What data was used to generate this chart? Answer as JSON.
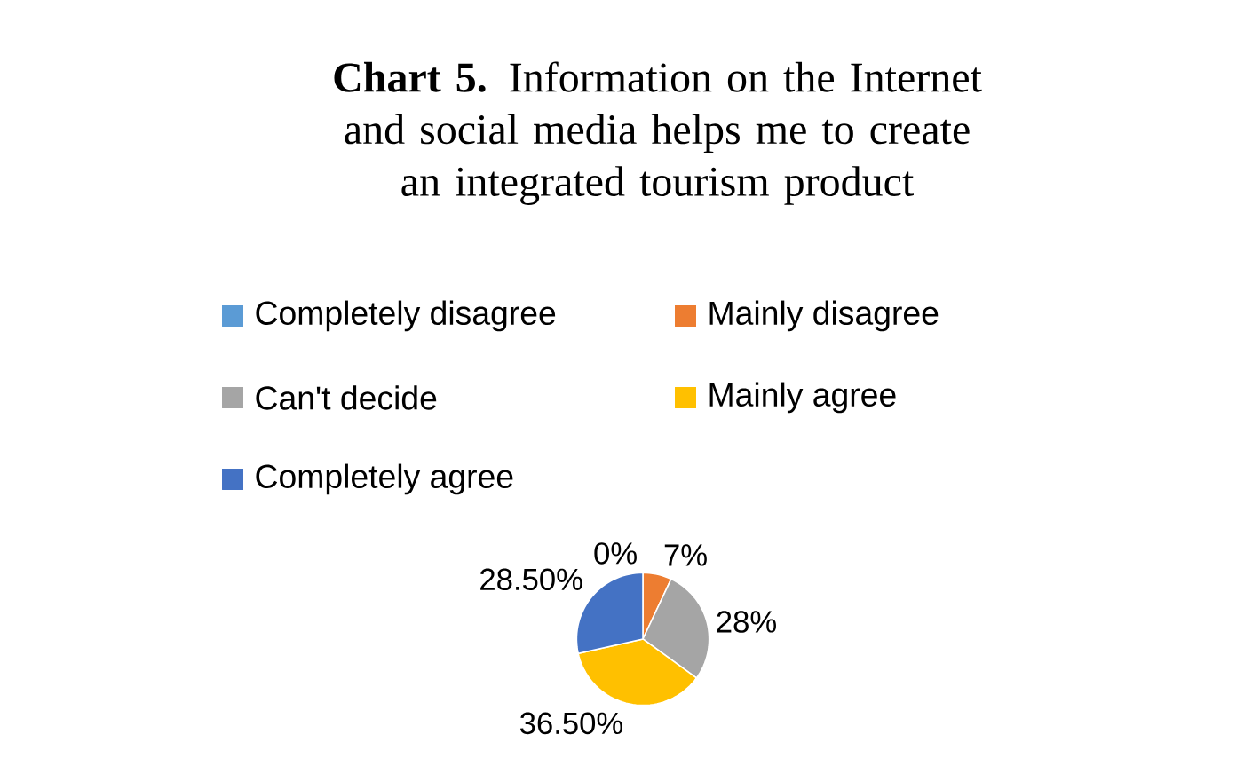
{
  "chart_data": {
    "type": "pie",
    "title": "**Chart 5.** Information on the Internet and social media helps me to create an integrated tourism product",
    "categories": [
      "Completely disagree",
      "Mainly disagree",
      "Can't decide",
      "Mainly agree",
      "Completely agree"
    ],
    "values": [
      0,
      7,
      28,
      36.5,
      28.5
    ],
    "value_labels": [
      "0%",
      "7%",
      "28%",
      "36.50%",
      "28.50%"
    ],
    "colors": [
      "#5b9bd5",
      "#ed7d31",
      "#a5a5a5",
      "#ffc000",
      "#4472c4"
    ],
    "legend": "top"
  }
}
